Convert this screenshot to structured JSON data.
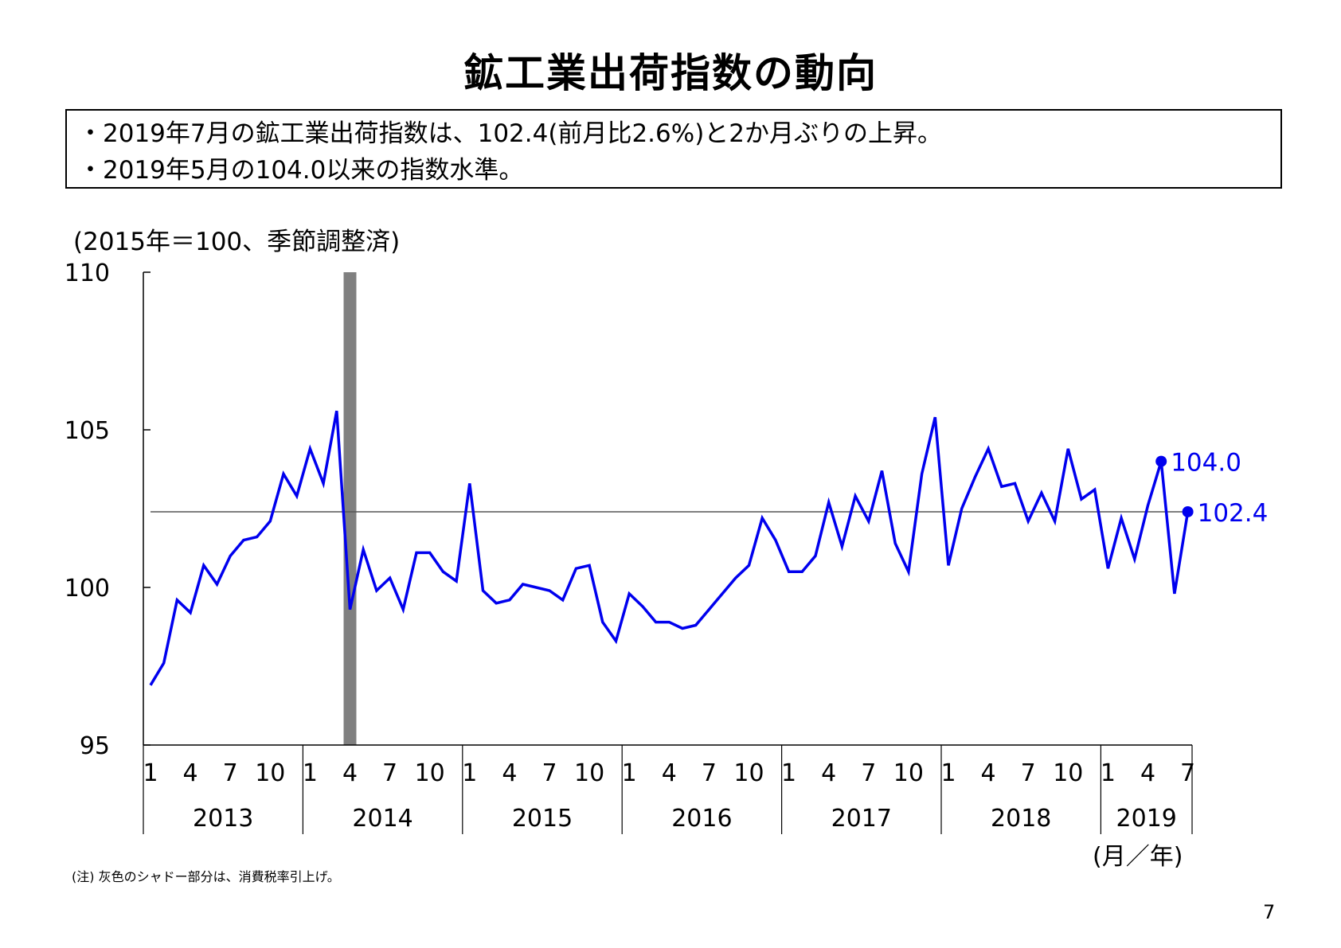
{
  "page": {
    "title": "鉱工業出荷指数の動向",
    "summary": [
      "・2019年7月の鉱工業出荷指数は、102.4(前月比2.6%)と2か月ぶりの上昇。",
      "・2019年5月の104.0以来の指数水準。"
    ],
    "unit_note": "(2015年＝100、季節調整済)",
    "axis_unit_label": "(月／年)",
    "footnote": "(注) 灰色のシャドー部分は、消費税率引上げ。",
    "page_number": "7"
  },
  "chart_data": {
    "type": "line",
    "title": "鉱工業出荷指数の動向",
    "ylabel": "(2015年＝100、季節調整済)",
    "xlabel": "(月／年)",
    "ylim": [
      95,
      110
    ],
    "yticks": [
      "95",
      "100",
      "105",
      "110"
    ],
    "month_tick_labels": [
      "1",
      "4",
      "7",
      "10"
    ],
    "last_year_month_tick_labels": [
      "1",
      "4",
      "7"
    ],
    "years": [
      "2013",
      "2014",
      "2015",
      "2016",
      "2017",
      "2018",
      "2019"
    ],
    "series": [
      {
        "color": "#0000ee",
        "start": "2013-01",
        "values": [
          96.9,
          97.6,
          99.6,
          99.2,
          100.7,
          100.1,
          101.0,
          101.5,
          101.6,
          102.1,
          103.6,
          102.9,
          104.4,
          103.3,
          105.6,
          99.3,
          101.2,
          99.9,
          100.3,
          99.3,
          101.1,
          101.1,
          100.5,
          100.2,
          103.3,
          99.9,
          99.5,
          99.6,
          100.1,
          100.0,
          99.9,
          99.6,
          100.6,
          100.7,
          98.9,
          98.3,
          99.8,
          99.4,
          98.9,
          98.9,
          98.7,
          98.8,
          99.3,
          99.8,
          100.3,
          100.7,
          102.2,
          101.5,
          100.5,
          100.5,
          101.0,
          102.7,
          101.3,
          102.9,
          102.1,
          103.7,
          101.4,
          100.5,
          103.6,
          105.4,
          100.7,
          102.5,
          103.5,
          104.4,
          103.2,
          103.3,
          102.1,
          103.0,
          102.1,
          104.4,
          102.8,
          103.1,
          100.6,
          102.2,
          100.9,
          102.6,
          104.0,
          99.8,
          102.4
        ]
      }
    ],
    "reference_line": 102.4,
    "shaded_period": {
      "from": "2014-04",
      "to": "2014-04",
      "color": "#808080"
    },
    "highlighted_points": [
      {
        "month": "2019-05",
        "value": 104.0,
        "label": "104.0"
      },
      {
        "month": "2019-07",
        "value": 102.4,
        "label": "102.4"
      }
    ],
    "grid": false
  }
}
